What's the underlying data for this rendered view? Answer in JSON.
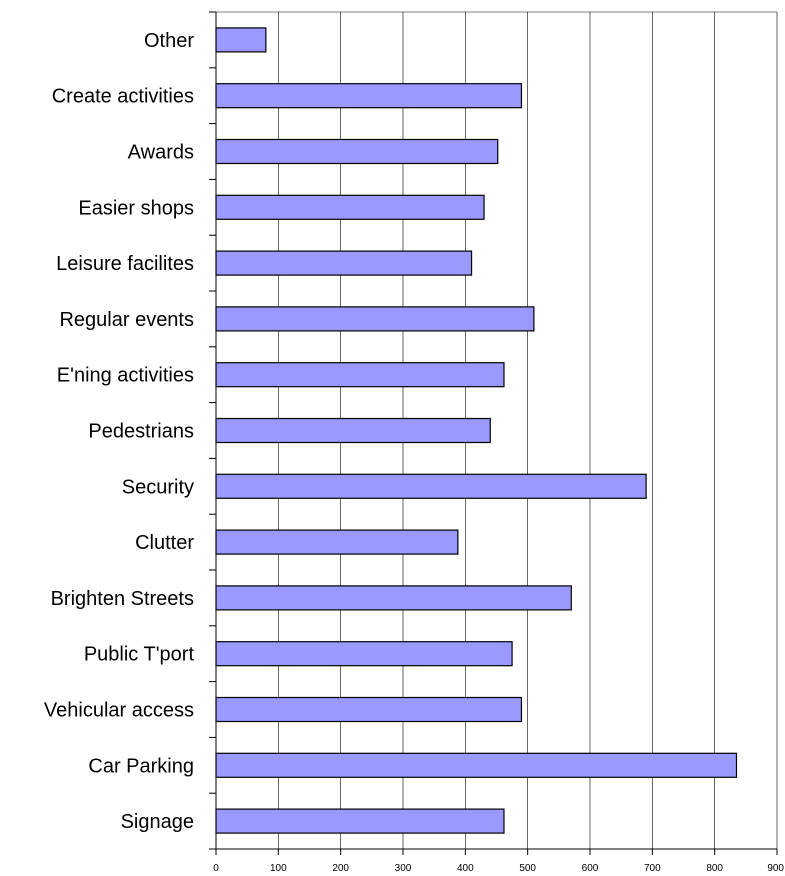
{
  "chart_data": {
    "type": "bar",
    "orientation": "horizontal",
    "categories": [
      "Other",
      "Create activities",
      "Awards",
      "Easier shops",
      "Leisure facilites",
      "Regular events",
      "E'ning activities",
      "Pedestrians",
      "Security",
      "Clutter",
      "Brighten Streets",
      "Public T'port",
      "Vehicular access",
      "Car Parking",
      "Signage"
    ],
    "values": [
      80,
      490,
      452,
      430,
      410,
      510,
      462,
      440,
      690,
      388,
      570,
      475,
      490,
      835,
      462
    ],
    "title": "",
    "xlabel": "",
    "ylabel": "",
    "xlim": [
      0,
      900
    ],
    "xticks": [
      0,
      100,
      200,
      300,
      400,
      500,
      600,
      700,
      800,
      900
    ],
    "xtick_labels": [
      "0",
      "100",
      "200",
      "300",
      "400",
      "500",
      "600",
      "700",
      "800",
      "900"
    ],
    "grid": "vertical gridlines",
    "legend": "none",
    "colors": {
      "bar_fill": "#9999ff",
      "bar_stroke": "#000000",
      "grid": "#000000",
      "background": "#ffffff"
    }
  }
}
